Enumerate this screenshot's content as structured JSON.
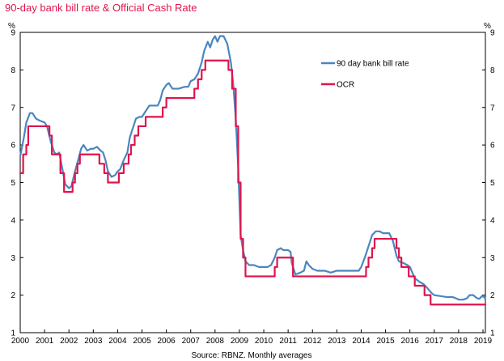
{
  "chart_data": {
    "type": "line",
    "title": "90-day bank bill rate & Official Cash Rate",
    "source": "Source: RBNZ. Monthly averages",
    "ylabel_left": "%",
    "ylabel_right": "%",
    "ylim": [
      1,
      9
    ],
    "xlim": [
      2000,
      2019.1
    ],
    "y_ticks": [
      "1",
      "2",
      "3",
      "4",
      "5",
      "6",
      "7",
      "8",
      "9"
    ],
    "x_ticks": [
      "2000",
      "2001",
      "2002",
      "2003",
      "2004",
      "2005",
      "2006",
      "2007",
      "2008",
      "2009",
      "2010",
      "2011",
      "2012",
      "2013",
      "2014",
      "2015",
      "2016",
      "2017",
      "2018",
      "2019"
    ],
    "legend_position": "top-right",
    "series": [
      {
        "name": "90 day bank bill rate",
        "color": "#4a86c0",
        "points": [
          [
            2000.0,
            5.7
          ],
          [
            2000.15,
            6.2
          ],
          [
            2000.25,
            6.6
          ],
          [
            2000.4,
            6.85
          ],
          [
            2000.5,
            6.85
          ],
          [
            2000.65,
            6.7
          ],
          [
            2000.8,
            6.65
          ],
          [
            2001.0,
            6.6
          ],
          [
            2001.1,
            6.5
          ],
          [
            2001.25,
            6.1
          ],
          [
            2001.4,
            5.8
          ],
          [
            2001.5,
            5.75
          ],
          [
            2001.6,
            5.8
          ],
          [
            2001.75,
            5.3
          ],
          [
            2001.85,
            4.95
          ],
          [
            2002.0,
            4.85
          ],
          [
            2002.1,
            4.9
          ],
          [
            2002.25,
            5.3
          ],
          [
            2002.4,
            5.65
          ],
          [
            2002.5,
            5.9
          ],
          [
            2002.6,
            6.0
          ],
          [
            2002.75,
            5.85
          ],
          [
            2002.9,
            5.9
          ],
          [
            2003.0,
            5.9
          ],
          [
            2003.15,
            5.95
          ],
          [
            2003.3,
            5.85
          ],
          [
            2003.4,
            5.8
          ],
          [
            2003.5,
            5.6
          ],
          [
            2003.6,
            5.3
          ],
          [
            2003.75,
            5.15
          ],
          [
            2003.9,
            5.2
          ],
          [
            2004.0,
            5.3
          ],
          [
            2004.1,
            5.35
          ],
          [
            2004.25,
            5.6
          ],
          [
            2004.4,
            5.8
          ],
          [
            2004.5,
            6.2
          ],
          [
            2004.6,
            6.4
          ],
          [
            2004.75,
            6.7
          ],
          [
            2004.9,
            6.75
          ],
          [
            2005.0,
            6.75
          ],
          [
            2005.15,
            6.9
          ],
          [
            2005.3,
            7.05
          ],
          [
            2005.5,
            7.05
          ],
          [
            2005.65,
            7.05
          ],
          [
            2005.75,
            7.2
          ],
          [
            2005.85,
            7.45
          ],
          [
            2006.0,
            7.6
          ],
          [
            2006.1,
            7.65
          ],
          [
            2006.25,
            7.5
          ],
          [
            2006.5,
            7.5
          ],
          [
            2006.75,
            7.55
          ],
          [
            2006.9,
            7.55
          ],
          [
            2007.0,
            7.7
          ],
          [
            2007.15,
            7.75
          ],
          [
            2007.3,
            7.9
          ],
          [
            2007.45,
            8.2
          ],
          [
            2007.55,
            8.5
          ],
          [
            2007.7,
            8.75
          ],
          [
            2007.8,
            8.6
          ],
          [
            2007.9,
            8.8
          ],
          [
            2008.0,
            8.9
          ],
          [
            2008.1,
            8.75
          ],
          [
            2008.2,
            8.9
          ],
          [
            2008.35,
            8.9
          ],
          [
            2008.5,
            8.7
          ],
          [
            2008.65,
            8.2
          ],
          [
            2008.75,
            7.6
          ],
          [
            2008.85,
            6.7
          ],
          [
            2008.95,
            5.4
          ],
          [
            2009.05,
            3.6
          ],
          [
            2009.15,
            3.2
          ],
          [
            2009.25,
            2.9
          ],
          [
            2009.4,
            2.8
          ],
          [
            2009.6,
            2.8
          ],
          [
            2009.8,
            2.75
          ],
          [
            2010.0,
            2.75
          ],
          [
            2010.15,
            2.75
          ],
          [
            2010.3,
            2.8
          ],
          [
            2010.45,
            3.0
          ],
          [
            2010.55,
            3.2
          ],
          [
            2010.7,
            3.25
          ],
          [
            2010.8,
            3.2
          ],
          [
            2011.0,
            3.2
          ],
          [
            2011.1,
            3.15
          ],
          [
            2011.15,
            2.85
          ],
          [
            2011.3,
            2.55
          ],
          [
            2011.5,
            2.6
          ],
          [
            2011.65,
            2.65
          ],
          [
            2011.75,
            2.9
          ],
          [
            2011.85,
            2.8
          ],
          [
            2012.0,
            2.7
          ],
          [
            2012.2,
            2.65
          ],
          [
            2012.5,
            2.65
          ],
          [
            2012.75,
            2.6
          ],
          [
            2013.0,
            2.65
          ],
          [
            2013.3,
            2.65
          ],
          [
            2013.6,
            2.65
          ],
          [
            2013.9,
            2.65
          ],
          [
            2014.0,
            2.75
          ],
          [
            2014.15,
            3.0
          ],
          [
            2014.3,
            3.3
          ],
          [
            2014.45,
            3.6
          ],
          [
            2014.6,
            3.7
          ],
          [
            2014.75,
            3.7
          ],
          [
            2014.9,
            3.65
          ],
          [
            2015.0,
            3.65
          ],
          [
            2015.15,
            3.65
          ],
          [
            2015.3,
            3.45
          ],
          [
            2015.45,
            3.05
          ],
          [
            2015.55,
            2.9
          ],
          [
            2015.75,
            2.85
          ],
          [
            2015.9,
            2.8
          ],
          [
            2016.0,
            2.75
          ],
          [
            2016.2,
            2.45
          ],
          [
            2016.4,
            2.35
          ],
          [
            2016.55,
            2.3
          ],
          [
            2016.7,
            2.2
          ],
          [
            2016.9,
            2.05
          ],
          [
            2017.0,
            2.0
          ],
          [
            2017.2,
            1.98
          ],
          [
            2017.5,
            1.95
          ],
          [
            2017.75,
            1.95
          ],
          [
            2017.95,
            1.9
          ],
          [
            2018.0,
            1.88
          ],
          [
            2018.2,
            1.88
          ],
          [
            2018.35,
            1.92
          ],
          [
            2018.45,
            2.0
          ],
          [
            2018.6,
            2.0
          ],
          [
            2018.75,
            1.92
          ],
          [
            2018.85,
            1.9
          ],
          [
            2018.95,
            1.97
          ],
          [
            2019.05,
            1.95
          ],
          [
            2019.1,
            1.9
          ]
        ]
      },
      {
        "name": "OCR",
        "color": "#e0144c",
        "points": [
          [
            2000.0,
            5.25
          ],
          [
            2000.12,
            5.25
          ],
          [
            2000.12,
            5.75
          ],
          [
            2000.25,
            5.75
          ],
          [
            2000.25,
            6.0
          ],
          [
            2000.33,
            6.0
          ],
          [
            2000.33,
            6.5
          ],
          [
            2001.2,
            6.5
          ],
          [
            2001.2,
            6.25
          ],
          [
            2001.3,
            6.25
          ],
          [
            2001.3,
            5.75
          ],
          [
            2001.65,
            5.75
          ],
          [
            2001.65,
            5.25
          ],
          [
            2001.8,
            5.25
          ],
          [
            2001.8,
            4.75
          ],
          [
            2002.15,
            4.75
          ],
          [
            2002.15,
            5.0
          ],
          [
            2002.25,
            5.0
          ],
          [
            2002.25,
            5.25
          ],
          [
            2002.35,
            5.25
          ],
          [
            2002.35,
            5.5
          ],
          [
            2002.45,
            5.5
          ],
          [
            2002.45,
            5.75
          ],
          [
            2003.25,
            5.75
          ],
          [
            2003.25,
            5.5
          ],
          [
            2003.45,
            5.5
          ],
          [
            2003.45,
            5.25
          ],
          [
            2003.6,
            5.25
          ],
          [
            2003.6,
            5.0
          ],
          [
            2004.05,
            5.0
          ],
          [
            2004.05,
            5.25
          ],
          [
            2004.25,
            5.25
          ],
          [
            2004.25,
            5.5
          ],
          [
            2004.45,
            5.5
          ],
          [
            2004.45,
            5.75
          ],
          [
            2004.55,
            5.75
          ],
          [
            2004.55,
            6.0
          ],
          [
            2004.7,
            6.0
          ],
          [
            2004.7,
            6.25
          ],
          [
            2004.85,
            6.25
          ],
          [
            2004.85,
            6.5
          ],
          [
            2005.15,
            6.5
          ],
          [
            2005.15,
            6.75
          ],
          [
            2005.85,
            6.75
          ],
          [
            2005.85,
            7.0
          ],
          [
            2006.0,
            7.0
          ],
          [
            2006.0,
            7.25
          ],
          [
            2007.15,
            7.25
          ],
          [
            2007.15,
            7.5
          ],
          [
            2007.3,
            7.5
          ],
          [
            2007.3,
            7.75
          ],
          [
            2007.45,
            7.75
          ],
          [
            2007.45,
            8.0
          ],
          [
            2007.6,
            8.0
          ],
          [
            2007.6,
            8.25
          ],
          [
            2008.55,
            8.25
          ],
          [
            2008.55,
            8.0
          ],
          [
            2008.7,
            8.0
          ],
          [
            2008.7,
            7.5
          ],
          [
            2008.85,
            7.5
          ],
          [
            2008.85,
            6.5
          ],
          [
            2008.95,
            6.5
          ],
          [
            2008.95,
            5.0
          ],
          [
            2009.05,
            5.0
          ],
          [
            2009.05,
            3.5
          ],
          [
            2009.15,
            3.5
          ],
          [
            2009.15,
            3.0
          ],
          [
            2009.25,
            3.0
          ],
          [
            2009.25,
            2.5
          ],
          [
            2010.45,
            2.5
          ],
          [
            2010.45,
            2.75
          ],
          [
            2010.55,
            2.75
          ],
          [
            2010.55,
            3.0
          ],
          [
            2011.2,
            3.0
          ],
          [
            2011.2,
            2.5
          ],
          [
            2014.2,
            2.5
          ],
          [
            2014.2,
            2.75
          ],
          [
            2014.3,
            2.75
          ],
          [
            2014.3,
            3.0
          ],
          [
            2014.45,
            3.0
          ],
          [
            2014.45,
            3.25
          ],
          [
            2014.55,
            3.25
          ],
          [
            2014.55,
            3.5
          ],
          [
            2015.45,
            3.5
          ],
          [
            2015.45,
            3.25
          ],
          [
            2015.55,
            3.25
          ],
          [
            2015.55,
            3.0
          ],
          [
            2015.65,
            3.0
          ],
          [
            2015.65,
            2.75
          ],
          [
            2015.95,
            2.75
          ],
          [
            2015.95,
            2.5
          ],
          [
            2016.2,
            2.5
          ],
          [
            2016.2,
            2.25
          ],
          [
            2016.6,
            2.25
          ],
          [
            2016.6,
            2.0
          ],
          [
            2016.85,
            2.0
          ],
          [
            2016.85,
            1.75
          ],
          [
            2019.1,
            1.75
          ]
        ]
      }
    ]
  }
}
